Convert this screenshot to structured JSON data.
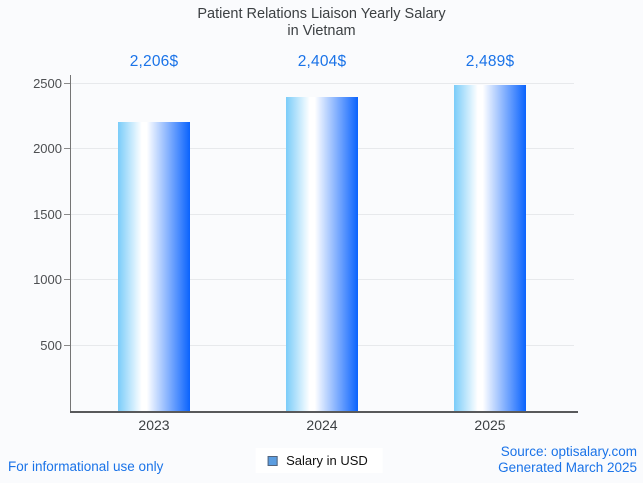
{
  "title": {
    "line1": "Patient Relations Liaison Yearly Salary",
    "line2": "in Vietnam"
  },
  "chart_data": {
    "type": "bar",
    "title": "Patient Relations Liaison Yearly Salary in Vietnam",
    "categories": [
      "2023",
      "2024",
      "2025"
    ],
    "values": [
      2206,
      2404,
      2489
    ],
    "value_labels": [
      "2,206$",
      "2,404$",
      "2,489$"
    ],
    "xlabel": "",
    "ylabel": "",
    "ylim": [
      0,
      2500
    ],
    "yticks": [
      500,
      1000,
      1500,
      2000,
      2500
    ],
    "grid": true,
    "legend_position": "bottom",
    "bar_gradient": [
      "#7accf9",
      "#ffffff",
      "#0a63fd"
    ]
  },
  "legend": {
    "label": "Salary in USD",
    "marker_fill": "#5b9de0",
    "marker_border": "#53647c"
  },
  "footer": {
    "left": "For informational use only",
    "source": "Source: optisalary.com",
    "generated": "Generated March 2025"
  },
  "colors": {
    "accent_blue": "#1a73e8",
    "title_text": "#3c4043",
    "grid": "#e7e9ec",
    "tick_text": "#4d4f52"
  }
}
